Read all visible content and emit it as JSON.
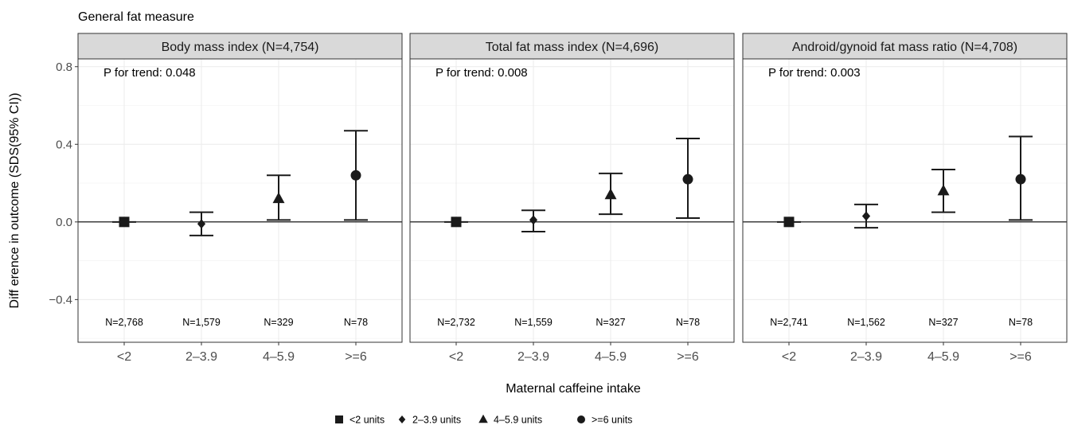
{
  "chart_data": {
    "type": "scatter",
    "title": "General fat measure",
    "xlabel": "Maternal caffeine intake",
    "ylabel": "Diff erence in outcome (SDS(95% CI))",
    "ylim": [
      -0.62,
      0.84
    ],
    "yticks": [
      0.8,
      0.4,
      0.0,
      -0.4
    ],
    "ytick_labels": [
      "0.8",
      "0.4",
      "0.0",
      "−0.4"
    ],
    "categories": [
      "<2",
      "2–3.9",
      "4–5.9",
      ">=6"
    ],
    "grid": true,
    "legend_position": "bottom",
    "legend": [
      {
        "label": "<2 units",
        "shape": "square"
      },
      {
        "label": "2–3.9 units",
        "shape": "diamond"
      },
      {
        "label": "4–5.9 units",
        "shape": "triangle"
      },
      {
        "label": ">=6 units",
        "shape": "circle"
      }
    ],
    "panels": [
      {
        "title": "Body mass index (N=4,754)",
        "trend": "P for trend: 0.048",
        "n": [
          "N=2,768",
          "N=1,579",
          "N=329",
          "N=78"
        ],
        "estimates": [
          0.0,
          -0.01,
          0.12,
          0.24
        ],
        "lower": [
          0.0,
          -0.07,
          0.01,
          0.01
        ],
        "upper": [
          0.0,
          0.05,
          0.24,
          0.47
        ]
      },
      {
        "title": "Total fat mass index (N=4,696)",
        "trend": "P for trend: 0.008",
        "n": [
          "N=2,732",
          "N=1,559",
          "N=327",
          "N=78"
        ],
        "estimates": [
          0.0,
          0.01,
          0.14,
          0.22
        ],
        "lower": [
          0.0,
          -0.05,
          0.04,
          0.02
        ],
        "upper": [
          0.0,
          0.06,
          0.25,
          0.43
        ]
      },
      {
        "title": "Android/gynoid fat mass ratio (N=4,708)",
        "trend": "P for trend: 0.003",
        "n": [
          "N=2,741",
          "N=1,562",
          "N=327",
          "N=78"
        ],
        "estimates": [
          0.0,
          0.03,
          0.16,
          0.22
        ],
        "lower": [
          0.0,
          -0.03,
          0.05,
          0.01
        ],
        "upper": [
          0.0,
          0.09,
          0.27,
          0.44
        ]
      }
    ]
  }
}
